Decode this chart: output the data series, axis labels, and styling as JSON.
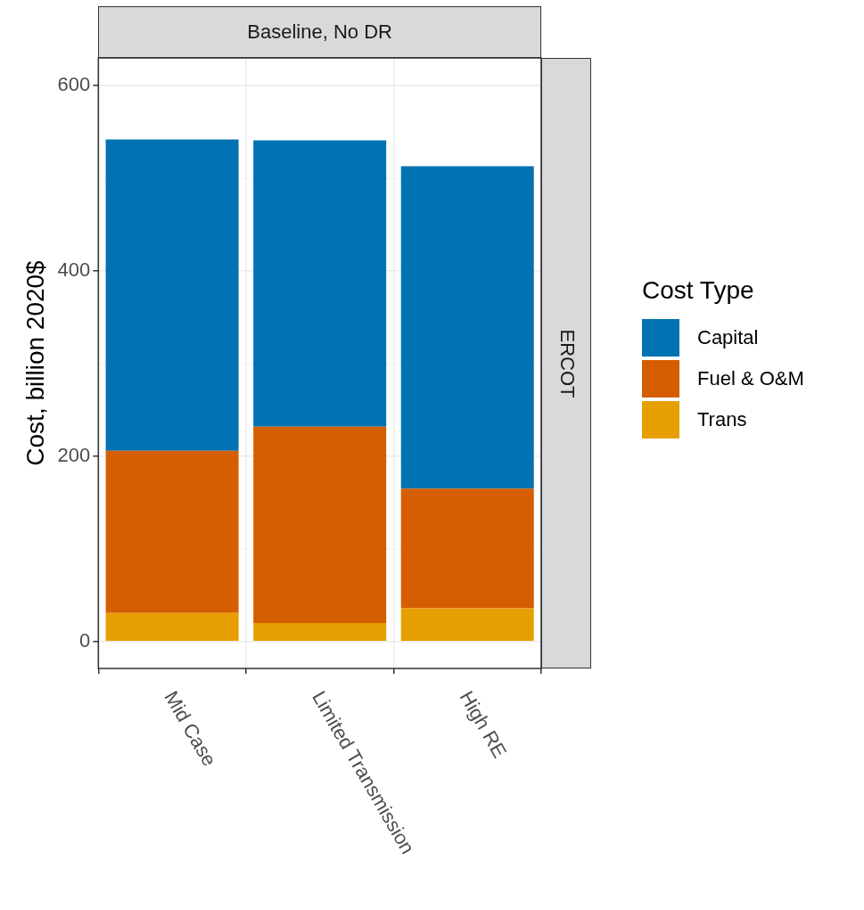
{
  "chart_data": {
    "type": "bar",
    "title": "Baseline, No DR",
    "annotations": [
      "ERCOT"
    ],
    "ylabel": "Cost, billion 2020$",
    "legend_title": "Cost Type",
    "categories": [
      "Mid Case",
      "Limited Transmission",
      "High RE"
    ],
    "stacked": true,
    "series": [
      {
        "name": "Trans",
        "color": "#e69f00",
        "values": [
          31,
          20,
          36
        ]
      },
      {
        "name": "Fuel & O&M",
        "color": "#d55e00",
        "values": [
          175,
          212,
          129
        ]
      },
      {
        "name": "Capital",
        "color": "#0072b2",
        "values": [
          336,
          309,
          348
        ]
      }
    ],
    "ylim": [
      -29,
      630
    ],
    "yticks": [
      0,
      200,
      400,
      600
    ],
    "grid": true,
    "legend": "right"
  }
}
